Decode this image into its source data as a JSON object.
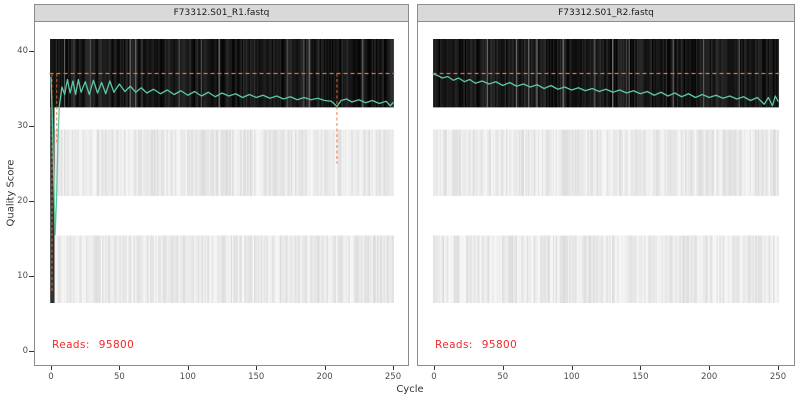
{
  "chart_data": {
    "type": "heatmap",
    "xlabel": "Cycle",
    "ylabel": "Quality Score",
    "x_ticks": [
      0,
      50,
      100,
      150,
      200,
      250
    ],
    "y_ticks": [
      0,
      10,
      20,
      30,
      40
    ],
    "xlim": [
      -12,
      262
    ],
    "ylim": [
      -2,
      44
    ],
    "n_cycles": 251,
    "threshold_q": 37,
    "quality_bands": [
      {
        "q_min": 32.5,
        "q_max": 41.6,
        "tone": "dark"
      },
      {
        "q_min": 20.7,
        "q_max": 29.5,
        "tone": "light"
      },
      {
        "q_min": 6.4,
        "q_max": 15.4,
        "tone": "light"
      }
    ],
    "panels": [
      {
        "title": "F73312.S01_R1.fastq",
        "reads_label": "Reads:",
        "reads_value": "95800",
        "start_outlier_cycles": [
          0,
          1,
          2
        ],
        "drop_markers": [
          {
            "cycle": 0.7,
            "q_from": 37,
            "q_to": 8
          },
          {
            "cycle": 4.2,
            "q_from": 37,
            "q_to": 27.5
          },
          {
            "cycle": 209,
            "q_from": 37,
            "q_to": 25
          }
        ],
        "mean_quality": [
          [
            0,
            36.5
          ],
          [
            1,
            31
          ],
          [
            2,
            23
          ],
          [
            3,
            15.5
          ],
          [
            4,
            20
          ],
          [
            5,
            27.5
          ],
          [
            6,
            32.5
          ],
          [
            8,
            35.2
          ],
          [
            10,
            34.2
          ],
          [
            12,
            36.2
          ],
          [
            14,
            34.4
          ],
          [
            16,
            36.0
          ],
          [
            18,
            34.2
          ],
          [
            20,
            36.2
          ],
          [
            22,
            34.5
          ],
          [
            25,
            35.9
          ],
          [
            28,
            34.2
          ],
          [
            31,
            36.1
          ],
          [
            34,
            34.4
          ],
          [
            37,
            35.8
          ],
          [
            40,
            34.3
          ],
          [
            43,
            36.0
          ],
          [
            46,
            34.5
          ],
          [
            50,
            35.6
          ],
          [
            54,
            34.6
          ],
          [
            58,
            35.3
          ],
          [
            62,
            34.5
          ],
          [
            66,
            35.1
          ],
          [
            70,
            34.4
          ],
          [
            75,
            34.9
          ],
          [
            80,
            34.3
          ],
          [
            85,
            34.8
          ],
          [
            90,
            34.2
          ],
          [
            95,
            34.7
          ],
          [
            100,
            34.1
          ],
          [
            105,
            34.6
          ],
          [
            110,
            34.0
          ],
          [
            115,
            34.5
          ],
          [
            120,
            33.9
          ],
          [
            125,
            34.4
          ],
          [
            130,
            34.0
          ],
          [
            135,
            34.3
          ],
          [
            140,
            33.8
          ],
          [
            145,
            34.2
          ],
          [
            150,
            33.8
          ],
          [
            155,
            34.1
          ],
          [
            160,
            33.7
          ],
          [
            165,
            34.0
          ],
          [
            170,
            33.6
          ],
          [
            175,
            33.9
          ],
          [
            180,
            33.5
          ],
          [
            185,
            33.8
          ],
          [
            190,
            33.5
          ],
          [
            195,
            33.7
          ],
          [
            200,
            33.4
          ],
          [
            205,
            33.3
          ],
          [
            209,
            32.6
          ],
          [
            212,
            33.4
          ],
          [
            216,
            33.6
          ],
          [
            220,
            33.2
          ],
          [
            225,
            33.5
          ],
          [
            230,
            33.1
          ],
          [
            235,
            33.4
          ],
          [
            240,
            33.0
          ],
          [
            245,
            33.3
          ],
          [
            248,
            32.7
          ],
          [
            250,
            33.1
          ]
        ]
      },
      {
        "title": "F73312.S01_R2.fastq",
        "reads_label": "Reads:",
        "reads_value": "95800",
        "start_outlier_cycles": [],
        "drop_markers": [],
        "mean_quality": [
          [
            0,
            36.9
          ],
          [
            3,
            36.7
          ],
          [
            6,
            36.4
          ],
          [
            10,
            36.6
          ],
          [
            14,
            36.1
          ],
          [
            18,
            36.4
          ],
          [
            22,
            35.9
          ],
          [
            26,
            36.2
          ],
          [
            30,
            35.7
          ],
          [
            35,
            36.0
          ],
          [
            40,
            35.6
          ],
          [
            45,
            35.9
          ],
          [
            50,
            35.4
          ],
          [
            55,
            35.8
          ],
          [
            60,
            35.3
          ],
          [
            65,
            35.6
          ],
          [
            70,
            35.2
          ],
          [
            75,
            35.5
          ],
          [
            80,
            35.0
          ],
          [
            85,
            35.4
          ],
          [
            90,
            34.9
          ],
          [
            95,
            35.2
          ],
          [
            100,
            34.8
          ],
          [
            105,
            35.1
          ],
          [
            110,
            34.7
          ],
          [
            115,
            35.0
          ],
          [
            120,
            34.6
          ],
          [
            125,
            34.9
          ],
          [
            130,
            34.5
          ],
          [
            135,
            34.8
          ],
          [
            140,
            34.4
          ],
          [
            145,
            34.7
          ],
          [
            150,
            34.3
          ],
          [
            155,
            34.6
          ],
          [
            160,
            34.1
          ],
          [
            165,
            34.5
          ],
          [
            170,
            34.0
          ],
          [
            175,
            34.4
          ],
          [
            180,
            33.9
          ],
          [
            185,
            34.3
          ],
          [
            190,
            33.8
          ],
          [
            195,
            34.2
          ],
          [
            200,
            33.8
          ],
          [
            205,
            34.1
          ],
          [
            210,
            33.7
          ],
          [
            215,
            34.0
          ],
          [
            220,
            33.6
          ],
          [
            225,
            33.9
          ],
          [
            230,
            33.4
          ],
          [
            235,
            33.8
          ],
          [
            240,
            32.9
          ],
          [
            243,
            33.8
          ],
          [
            246,
            32.7
          ],
          [
            248,
            34.0
          ],
          [
            250,
            33.3
          ]
        ]
      }
    ]
  },
  "colors": {
    "mean_line": "#5cc8a2",
    "threshold_line": "#e8702e",
    "reads_text": "#f12a2a",
    "strip_bg": "#d9d9d9",
    "border": "#8c8c8c",
    "axis_text": "#4d4d4d"
  }
}
